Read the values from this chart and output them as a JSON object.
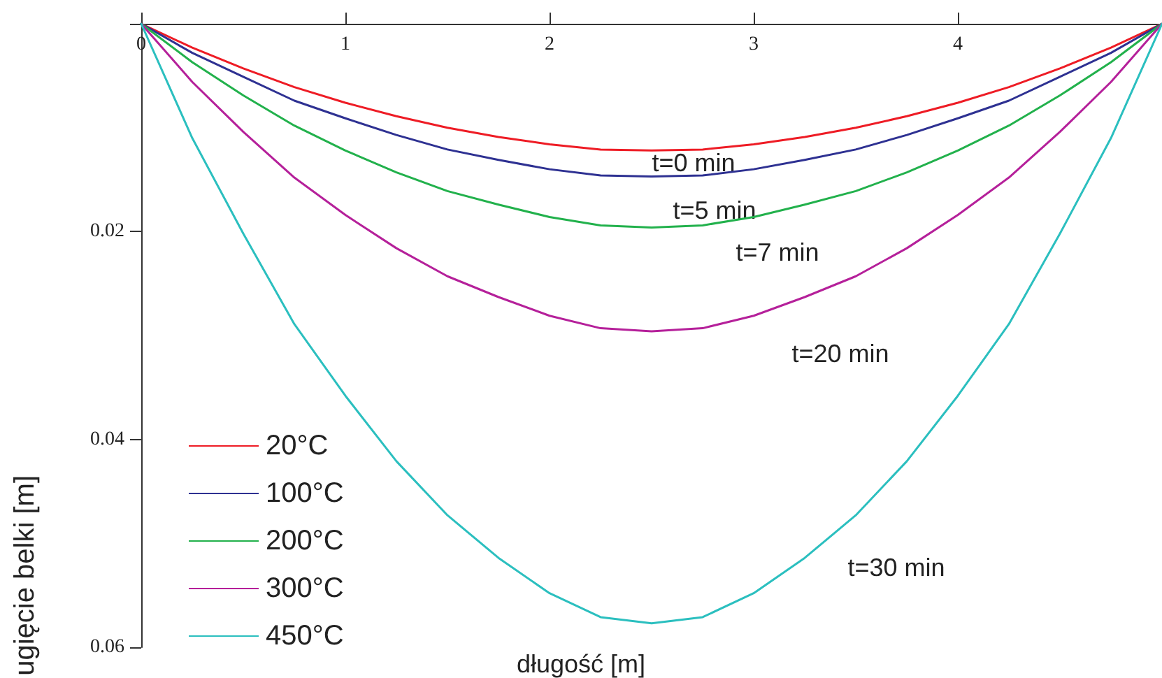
{
  "chart_data": {
    "type": "line",
    "xlabel": "długość [m]",
    "ylabel": "ugięcie belki [m]",
    "x": [
      0,
      0.25,
      0.5,
      0.75,
      1,
      1.25,
      1.5,
      1.75,
      2,
      2.25,
      2.5,
      2.75,
      3,
      3.25,
      3.5,
      3.75,
      4,
      4.25,
      4.5,
      4.75,
      5
    ],
    "series": [
      {
        "name": "20°C",
        "color": "#ee1c25",
        "values": [
          0,
          0.0023,
          0.0043,
          0.0061,
          0.0076,
          0.0089,
          0.01,
          0.0109,
          0.0116,
          0.0121,
          0.0122,
          0.0121,
          0.0116,
          0.0109,
          0.01,
          0.0089,
          0.0076,
          0.0061,
          0.0043,
          0.0023,
          0
        ]
      },
      {
        "name": "100°C",
        "color": "#2e3192",
        "values": [
          0,
          0.0028,
          0.0051,
          0.0074,
          0.0091,
          0.0107,
          0.0121,
          0.0131,
          0.014,
          0.0146,
          0.0147,
          0.0146,
          0.014,
          0.0131,
          0.0121,
          0.0107,
          0.0091,
          0.0074,
          0.0051,
          0.0028,
          0
        ]
      },
      {
        "name": "200°C",
        "color": "#22b14c",
        "values": [
          0,
          0.0037,
          0.0069,
          0.0098,
          0.0122,
          0.0143,
          0.0161,
          0.0174,
          0.0186,
          0.0194,
          0.0196,
          0.0194,
          0.0186,
          0.0174,
          0.0161,
          0.0143,
          0.0122,
          0.0098,
          0.0069,
          0.0037,
          0
        ]
      },
      {
        "name": "300°C",
        "color": "#b5209a",
        "values": [
          0,
          0.0056,
          0.0104,
          0.0148,
          0.0184,
          0.0216,
          0.0243,
          0.0263,
          0.0281,
          0.0293,
          0.0296,
          0.0293,
          0.0281,
          0.0263,
          0.0243,
          0.0216,
          0.0184,
          0.0148,
          0.0104,
          0.0056,
          0
        ]
      },
      {
        "name": "450°C",
        "color": "#2bbfbf",
        "values": [
          0,
          0.011,
          0.0202,
          0.0289,
          0.0358,
          0.0421,
          0.0473,
          0.0514,
          0.0548,
          0.0571,
          0.0577,
          0.0571,
          0.0548,
          0.0514,
          0.0473,
          0.0421,
          0.0358,
          0.0289,
          0.0202,
          0.011,
          0
        ]
      }
    ],
    "annotations": [
      "t=0 min",
      "t=5 min",
      "t=7 min",
      "t=20 min",
      "t=30 min"
    ],
    "xlim": [
      0,
      5
    ],
    "xticks": [
      0,
      1,
      2,
      3,
      4
    ],
    "ylim": [
      0.06,
      0
    ],
    "yticks": [
      {
        "value": 0,
        "label": null
      },
      0.02,
      0.04,
      0.06
    ],
    "grid": false,
    "legend": "bottom left",
    "marker": "none",
    "line_style": "solid"
  }
}
